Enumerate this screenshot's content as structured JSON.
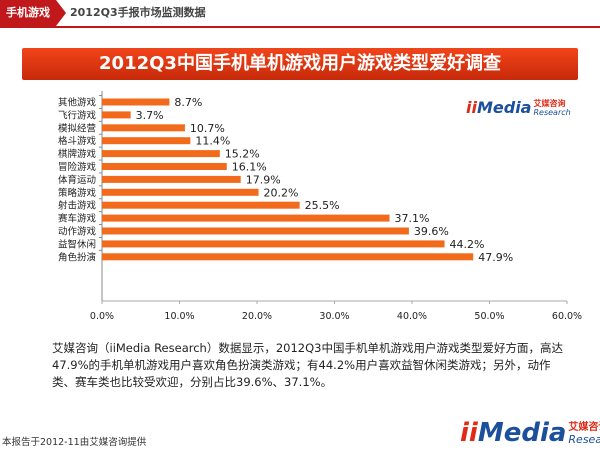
{
  "header": {
    "section_tag": "手机游戏",
    "report_name": "2012Q3手报市场监测数据"
  },
  "banner": {
    "title": "2012Q3中国手机单机游戏用户游戏类型爱好调查"
  },
  "logo": {
    "ii": "ii",
    "media": "Media",
    "cn": "艾媒咨询",
    "en": "Research"
  },
  "chart_data": {
    "type": "bar",
    "orientation": "horizontal",
    "categories": [
      "其他游戏",
      "飞行游戏",
      "模拟经营",
      "格斗游戏",
      "棋牌游戏",
      "冒险游戏",
      "体育运动",
      "策略游戏",
      "射击游戏",
      "赛车游戏",
      "动作游戏",
      "益智休闲",
      "角色扮演"
    ],
    "values": [
      8.7,
      3.7,
      10.7,
      11.4,
      15.2,
      16.1,
      17.9,
      20.2,
      25.5,
      37.1,
      39.6,
      44.2,
      47.9
    ],
    "value_labels": [
      "8.7%",
      "3.7%",
      "10.7%",
      "11.4%",
      "15.2%",
      "16.1%",
      "17.9%",
      "20.2%",
      "25.5%",
      "37.1%",
      "39.6%",
      "44.2%",
      "47.9%"
    ],
    "xlim": [
      0,
      60
    ],
    "x_ticks": [
      "0.0%",
      "10.0%",
      "20.0%",
      "30.0%",
      "40.0%",
      "50.0%",
      "60.0%"
    ],
    "bar_color": "#f26b1d",
    "grid": false
  },
  "description": "艾媒咨询（iiMedia Research）数据显示，2012Q3中国手机单机游戏用户游戏类型爱好方面，高达47.9%的手机单机游戏用户喜欢角色扮演类游戏；有44.2%用户喜欢益智休闲类游戏；另外，动作类、赛车类也比较受欢迎，分别占比39.6%、37.1%。",
  "footer_note": "本报告于2012-11由艾媒咨询提供",
  "colors": {
    "brand_red": "#c0181b",
    "banner_orange": "#f2441a",
    "bar_orange": "#f26b1d",
    "logo_blue": "#1c4f9c"
  }
}
